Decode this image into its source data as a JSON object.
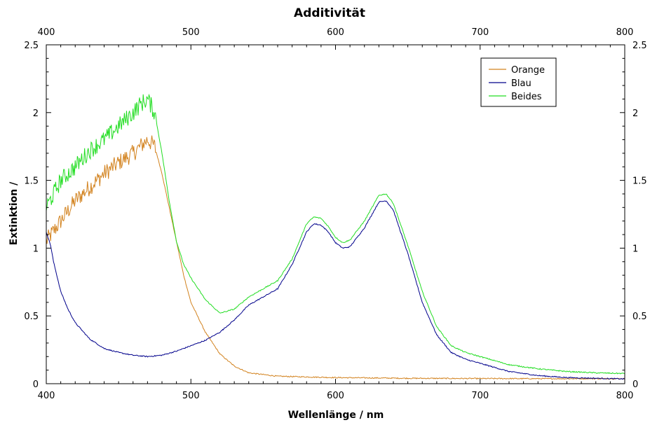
{
  "chart_data": {
    "type": "line",
    "title": "Additivität",
    "xlabel": "Wellenlänge / nm",
    "ylabel": "Extinktion /",
    "xlim": [
      400,
      800
    ],
    "ylim": [
      0,
      2.5
    ],
    "x_ticks": [
      "400",
      "500",
      "600",
      "700",
      "800"
    ],
    "y_ticks": [
      "0",
      "0.5",
      "1",
      "1.5",
      "2",
      "2.5"
    ],
    "grid": false,
    "legend_position": "top-right",
    "series": [
      {
        "name": "Orange",
        "color": "#d2821e",
        "noisy_range": [
          400,
          476
        ],
        "points": [
          [
            400,
            1.05
          ],
          [
            410,
            1.2
          ],
          [
            420,
            1.35
          ],
          [
            430,
            1.45
          ],
          [
            440,
            1.55
          ],
          [
            450,
            1.63
          ],
          [
            460,
            1.7
          ],
          [
            465,
            1.75
          ],
          [
            470,
            1.8
          ],
          [
            475,
            1.75
          ],
          [
            480,
            1.55
          ],
          [
            485,
            1.3
          ],
          [
            490,
            1.05
          ],
          [
            495,
            0.8
          ],
          [
            500,
            0.6
          ],
          [
            510,
            0.38
          ],
          [
            520,
            0.22
          ],
          [
            530,
            0.13
          ],
          [
            540,
            0.08
          ],
          [
            560,
            0.055
          ],
          [
            600,
            0.045
          ],
          [
            650,
            0.04
          ],
          [
            700,
            0.038
          ],
          [
            750,
            0.037
          ],
          [
            800,
            0.037
          ]
        ]
      },
      {
        "name": "Blau",
        "color": "#00008b",
        "noisy_range": [],
        "points": [
          [
            400,
            1.12
          ],
          [
            403,
            1.02
          ],
          [
            405,
            0.9
          ],
          [
            410,
            0.68
          ],
          [
            415,
            0.55
          ],
          [
            420,
            0.45
          ],
          [
            430,
            0.33
          ],
          [
            440,
            0.26
          ],
          [
            450,
            0.23
          ],
          [
            460,
            0.21
          ],
          [
            470,
            0.2
          ],
          [
            480,
            0.21
          ],
          [
            490,
            0.24
          ],
          [
            500,
            0.28
          ],
          [
            510,
            0.32
          ],
          [
            520,
            0.38
          ],
          [
            530,
            0.47
          ],
          [
            540,
            0.58
          ],
          [
            550,
            0.64
          ],
          [
            560,
            0.7
          ],
          [
            570,
            0.88
          ],
          [
            580,
            1.12
          ],
          [
            585,
            1.18
          ],
          [
            590,
            1.17
          ],
          [
            595,
            1.12
          ],
          [
            600,
            1.04
          ],
          [
            605,
            1.0
          ],
          [
            610,
            1.01
          ],
          [
            620,
            1.15
          ],
          [
            630,
            1.34
          ],
          [
            635,
            1.35
          ],
          [
            640,
            1.28
          ],
          [
            650,
            0.96
          ],
          [
            660,
            0.6
          ],
          [
            670,
            0.36
          ],
          [
            680,
            0.23
          ],
          [
            690,
            0.18
          ],
          [
            700,
            0.15
          ],
          [
            710,
            0.12
          ],
          [
            720,
            0.09
          ],
          [
            740,
            0.06
          ],
          [
            760,
            0.045
          ],
          [
            780,
            0.04
          ],
          [
            800,
            0.035
          ]
        ]
      },
      {
        "name": "Beides",
        "color": "#22dd22",
        "noisy_range": [
          400,
          476
        ],
        "points": [
          [
            400,
            1.3
          ],
          [
            410,
            1.5
          ],
          [
            420,
            1.6
          ],
          [
            430,
            1.72
          ],
          [
            440,
            1.8
          ],
          [
            450,
            1.9
          ],
          [
            460,
            2.0
          ],
          [
            465,
            2.06
          ],
          [
            470,
            2.1
          ],
          [
            475,
            2.0
          ],
          [
            480,
            1.7
          ],
          [
            485,
            1.35
          ],
          [
            490,
            1.05
          ],
          [
            495,
            0.88
          ],
          [
            500,
            0.78
          ],
          [
            510,
            0.62
          ],
          [
            520,
            0.52
          ],
          [
            530,
            0.55
          ],
          [
            540,
            0.64
          ],
          [
            550,
            0.7
          ],
          [
            560,
            0.76
          ],
          [
            570,
            0.92
          ],
          [
            580,
            1.18
          ],
          [
            585,
            1.23
          ],
          [
            590,
            1.22
          ],
          [
            595,
            1.16
          ],
          [
            600,
            1.08
          ],
          [
            605,
            1.04
          ],
          [
            610,
            1.06
          ],
          [
            620,
            1.2
          ],
          [
            630,
            1.39
          ],
          [
            635,
            1.4
          ],
          [
            640,
            1.33
          ],
          [
            650,
            1.02
          ],
          [
            660,
            0.68
          ],
          [
            670,
            0.42
          ],
          [
            680,
            0.28
          ],
          [
            690,
            0.23
          ],
          [
            700,
            0.2
          ],
          [
            710,
            0.17
          ],
          [
            720,
            0.14
          ],
          [
            740,
            0.11
          ],
          [
            760,
            0.09
          ],
          [
            780,
            0.08
          ],
          [
            800,
            0.075
          ]
        ]
      }
    ]
  }
}
